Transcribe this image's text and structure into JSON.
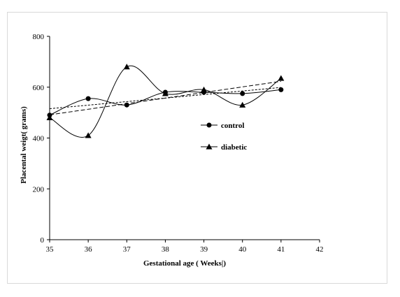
{
  "chart_data": {
    "type": "line",
    "xlabel": "Gestational age ( Weeks|)",
    "ylabel": "Placental weigt( grams)",
    "xlim": [
      35,
      42
    ],
    "ylim": [
      0,
      800
    ],
    "x_ticks": [
      "35",
      "36",
      "37",
      "38",
      "39",
      "40",
      "41",
      "42"
    ],
    "y_ticks": [
      "0",
      "200",
      "400",
      "600",
      "800"
    ],
    "x": [
      35,
      36,
      37,
      38,
      39,
      40,
      41
    ],
    "series": [
      {
        "name": "control",
        "marker": "circle",
        "values": [
          490,
          555,
          530,
          580,
          580,
          575,
          590
        ],
        "trendline": true
      },
      {
        "name": "diabetic",
        "marker": "triangle",
        "values": [
          480,
          410,
          680,
          575,
          590,
          530,
          635
        ],
        "trendline": true
      }
    ],
    "smoothed": true,
    "grid": false,
    "legend": "center-right",
    "colors": {
      "line": "#000000",
      "axis": "#000000",
      "border": "#d9d9d9"
    }
  }
}
